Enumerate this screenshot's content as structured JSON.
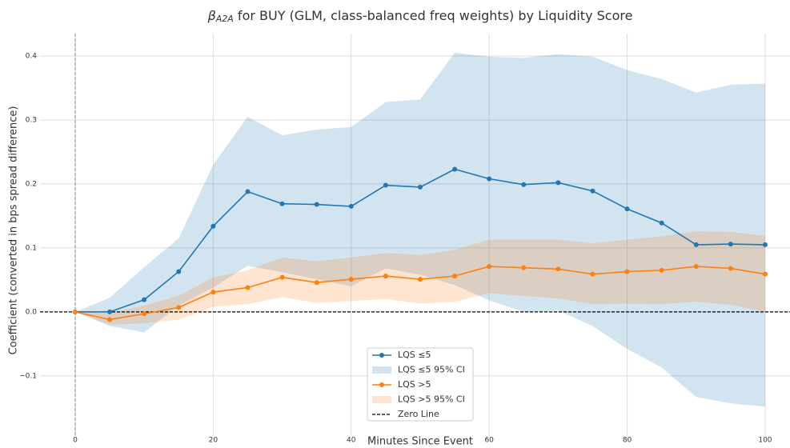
{
  "chart_data": {
    "type": "line",
    "title_symbol": "β",
    "title_subscript": "A2A",
    "title": " for BUY (GLM, class-balanced freq weights) by Liquidity Score",
    "xlabel": "Minutes Since Event",
    "ylabel": "Coefficient (converted in bps spread difference)",
    "x": [
      0,
      5,
      10,
      15,
      20,
      25,
      30,
      35,
      40,
      45,
      50,
      55,
      60,
      65,
      70,
      75,
      80,
      85,
      90,
      95,
      100
    ],
    "series": [
      {
        "name": "LQS ≤5",
        "color": "#1f77b4",
        "values": [
          0,
          0.0,
          0.019,
          0.063,
          0.134,
          0.188,
          0.169,
          0.168,
          0.165,
          0.198,
          0.195,
          0.223,
          0.208,
          0.199,
          0.202,
          0.189,
          0.161,
          0.139,
          0.105,
          0.106,
          0.105
        ]
      },
      {
        "name": "LQS >5",
        "color": "#ff7f0e",
        "values": [
          0,
          -0.012,
          -0.003,
          0.007,
          0.031,
          0.038,
          0.054,
          0.046,
          0.051,
          0.056,
          0.051,
          0.056,
          0.071,
          0.069,
          0.067,
          0.059,
          0.063,
          0.065,
          0.071,
          0.068,
          0.059
        ]
      }
    ],
    "bands": [
      {
        "name": "LQS ≤5 95% CI",
        "color": "#1f77b4",
        "upper": [
          0,
          0.022,
          0.07,
          0.115,
          0.23,
          0.305,
          0.276,
          0.285,
          0.289,
          0.328,
          0.332,
          0.405,
          0.399,
          0.397,
          0.403,
          0.399,
          0.378,
          0.364,
          0.343,
          0.355,
          0.357
        ],
        "lower": [
          0,
          -0.022,
          -0.032,
          0.01,
          0.038,
          0.072,
          0.062,
          0.051,
          0.04,
          0.068,
          0.058,
          0.042,
          0.018,
          0.0,
          0.002,
          -0.022,
          -0.058,
          -0.087,
          -0.133,
          -0.143,
          -0.148
        ]
      },
      {
        "name": "LQS >5 95% CI",
        "color": "#ff7f0e",
        "upper": [
          0,
          -0.002,
          0.01,
          0.025,
          0.054,
          0.065,
          0.085,
          0.079,
          0.085,
          0.092,
          0.089,
          0.097,
          0.113,
          0.113,
          0.113,
          0.107,
          0.113,
          0.118,
          0.126,
          0.125,
          0.119
        ],
        "lower": [
          0,
          -0.02,
          -0.018,
          -0.012,
          0.008,
          0.012,
          0.023,
          0.014,
          0.017,
          0.02,
          0.013,
          0.016,
          0.029,
          0.025,
          0.021,
          0.012,
          0.013,
          0.012,
          0.016,
          0.011,
          0.0
        ]
      }
    ],
    "hline": {
      "name": "Zero Line",
      "value": 0
    },
    "vline": 0,
    "xlim": [
      -5.1,
      103.6
    ],
    "ylim": [
      -0.194,
      0.435
    ],
    "xticks": [
      0,
      20,
      40,
      60,
      80,
      100
    ],
    "yticks": [
      {
        "value": -0.1,
        "label": "−0.1"
      },
      {
        "value": 0,
        "label": "0.0"
      },
      0.1,
      0.2,
      0.3,
      0.4
    ],
    "grid": true,
    "legend": "lower center"
  }
}
